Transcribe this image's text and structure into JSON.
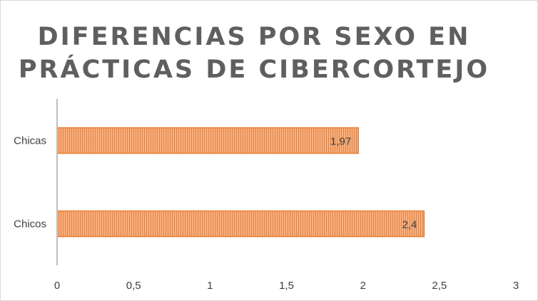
{
  "chart_data": {
    "type": "bar",
    "orientation": "horizontal",
    "title_lines": [
      "DIFERENCIAS POR SEXO EN",
      "PRÁCTICAS DE CIBERCORTEJO"
    ],
    "categories": [
      "Chicas",
      "Chicos"
    ],
    "values": [
      1.97,
      2.4
    ],
    "value_labels": [
      "1,97",
      "2,4"
    ],
    "xlim": [
      0,
      3
    ],
    "x_ticks": [
      0,
      0.5,
      1,
      1.5,
      2,
      2.5,
      3
    ],
    "x_tick_labels": [
      "0",
      "0,5",
      "1",
      "1,5",
      "2",
      "2,5",
      "3"
    ],
    "grid": false,
    "legend": "none",
    "colors": {
      "bar_fill": "#f4b183",
      "bar_stripe": "#e8823f",
      "bar_border": "#ed7d31",
      "title": "#5f5f5f",
      "axis": "#bfbfbf",
      "text": "#404040"
    }
  }
}
